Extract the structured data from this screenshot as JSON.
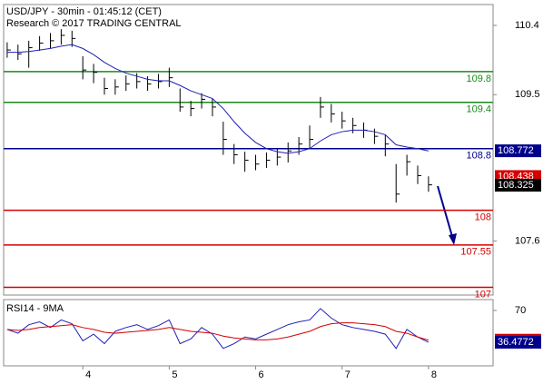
{
  "chart_data": [
    {
      "type": "ohlc",
      "title": "USD/JPY - 30min - 01:45:12 (CET)",
      "subtitle": "Research © 2017 TRADING CENTRAL",
      "x": [
        3.125,
        3.25,
        3.375,
        3.5,
        3.625,
        3.75,
        3.875,
        4,
        4.125,
        4.25,
        4.375,
        4.5,
        4.625,
        4.75,
        4.875,
        5,
        5.125,
        5.25,
        5.375,
        5.5,
        5.625,
        5.75,
        5.875,
        6,
        6.125,
        6.25,
        6.375,
        6.5,
        6.625,
        6.75,
        6.875,
        7,
        7.125,
        7.25,
        7.375,
        7.5,
        7.625,
        7.75,
        7.875,
        8
      ],
      "high": [
        110.18,
        110.15,
        110.2,
        110.26,
        110.3,
        110.35,
        110.33,
        110.0,
        109.9,
        109.72,
        109.7,
        109.75,
        109.78,
        109.74,
        109.77,
        109.85,
        109.58,
        109.42,
        109.52,
        109.45,
        109.15,
        108.86,
        108.76,
        108.72,
        108.75,
        108.8,
        108.88,
        108.95,
        109.1,
        109.47,
        109.38,
        109.28,
        109.2,
        109.14,
        109.06,
        108.98,
        108.6,
        108.72,
        108.58,
        108.44
      ],
      "low": [
        109.98,
        109.95,
        109.85,
        110.07,
        110.1,
        110.15,
        110.12,
        109.7,
        109.65,
        109.5,
        109.5,
        109.55,
        109.58,
        109.55,
        109.58,
        109.6,
        109.28,
        109.22,
        109.32,
        109.22,
        108.72,
        108.6,
        108.5,
        108.52,
        108.55,
        108.58,
        108.62,
        108.72,
        108.8,
        109.2,
        109.14,
        109.06,
        109.0,
        108.94,
        108.86,
        108.7,
        108.1,
        108.45,
        108.34,
        108.24
      ],
      "values": [
        110.08,
        110.03,
        110.11,
        110.17,
        110.2,
        110.27,
        110.23,
        109.82,
        109.79,
        109.58,
        109.6,
        109.64,
        109.67,
        109.64,
        109.67,
        109.72,
        109.34,
        109.32,
        109.44,
        109.34,
        108.92,
        108.72,
        108.65,
        108.6,
        108.65,
        108.69,
        108.77,
        108.86,
        108.92,
        109.34,
        109.25,
        109.16,
        109.1,
        109.04,
        108.96,
        108.86,
        108.21,
        108.63,
        108.45,
        108.33
      ],
      "color": "#000000",
      "ma": {
        "color": "#1f1fb4",
        "values": [
          110.05,
          110.05,
          110.06,
          110.08,
          110.1,
          110.13,
          110.15,
          110.1,
          110.02,
          109.92,
          109.84,
          109.78,
          109.74,
          109.7,
          109.68,
          109.68,
          109.62,
          109.55,
          109.5,
          109.45,
          109.32,
          109.15,
          109.0,
          108.88,
          108.8,
          108.76,
          108.74,
          108.76,
          108.8,
          108.9,
          108.98,
          109.02,
          109.04,
          109.04,
          109.02,
          108.98,
          108.85,
          108.82,
          108.8,
          108.77
        ]
      },
      "levels": [
        {
          "value": 109.8,
          "color": "#1a8a1a"
        },
        {
          "value": 109.4,
          "color": "#1a8a1a"
        },
        {
          "value": 108.8,
          "color": "#00008b"
        },
        {
          "value": 108,
          "color": "#d40000"
        },
        {
          "value": 107.55,
          "color": "#d40000"
        },
        {
          "value": 107,
          "color": "#d40000"
        }
      ],
      "markers": [
        {
          "value": 108.772,
          "color": "#00008b"
        },
        {
          "value": 108.438,
          "color": "#d40000"
        },
        {
          "value": 108.325,
          "color": "#000000"
        }
      ],
      "xlim": [
        3.084,
        8.747
      ],
      "xticks": [
        4,
        5,
        6,
        7,
        8
      ],
      "ylim": [
        106.9,
        110.67
      ],
      "yticks": [
        110.4,
        109.5,
        107.6
      ]
    },
    {
      "type": "line",
      "title": "RSI14 - 9MA",
      "x": [
        3.125,
        3.25,
        3.375,
        3.5,
        3.625,
        3.75,
        3.875,
        4,
        4.125,
        4.25,
        4.375,
        4.5,
        4.625,
        4.75,
        4.875,
        5,
        5.125,
        5.25,
        5.375,
        5.5,
        5.625,
        5.75,
        5.875,
        6,
        6.125,
        6.25,
        6.375,
        6.5,
        6.625,
        6.75,
        6.875,
        7,
        7.125,
        7.25,
        7.375,
        7.5,
        7.625,
        7.75,
        7.875,
        8
      ],
      "series": [
        {
          "color": "#1f1fb4",
          "values": [
            50,
            46,
            55,
            58,
            52,
            60,
            56,
            38,
            45,
            35,
            48,
            52,
            55,
            50,
            54,
            60,
            35,
            40,
            52,
            45,
            30,
            35,
            42,
            40,
            45,
            50,
            55,
            58,
            60,
            72,
            62,
            55,
            52,
            50,
            48,
            45,
            30,
            50,
            42,
            36.4772
          ]
        },
        {
          "color": "#d40000",
          "values": [
            50,
            49,
            50,
            52,
            53,
            54,
            55,
            52,
            50,
            47,
            46,
            47,
            48,
            49,
            50,
            52,
            50,
            48,
            47,
            46,
            43,
            41,
            40,
            39,
            39,
            40,
            42,
            45,
            48,
            53,
            56,
            57,
            57,
            56,
            55,
            53,
            48,
            46,
            42,
            38.67
          ]
        }
      ],
      "markers": [
        {
          "value": 38.67,
          "color": "#d40000"
        },
        {
          "value": 36.4772,
          "color": "#00008b"
        }
      ],
      "xlim": [
        3.084,
        8.747
      ],
      "ylim": [
        11.6,
        81.5
      ],
      "yticks": [
        70
      ]
    }
  ]
}
